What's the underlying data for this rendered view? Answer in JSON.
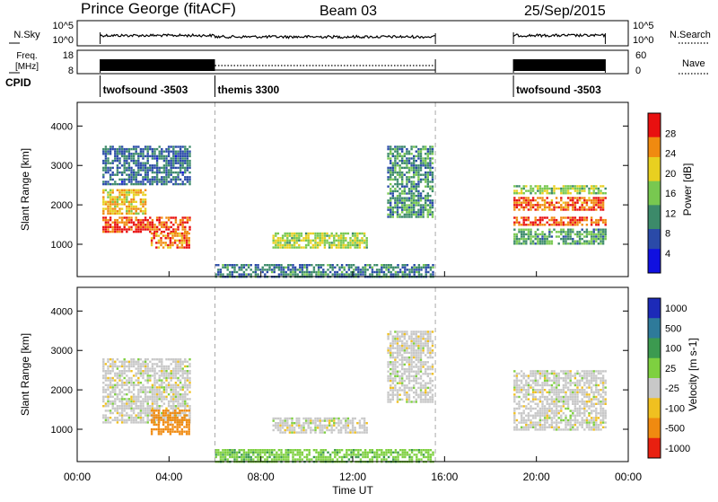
{
  "header": {
    "station": "Prince George (fitACF)",
    "beam": "Beam 03",
    "date": "25/Sep/2015"
  },
  "summary_panel": {
    "sky_label": "N.Sky",
    "sky_ticks": [
      "10^5",
      "10^0"
    ],
    "search_label": "N.Search",
    "search_ticks": [
      "10^5",
      "10^0"
    ],
    "freq_label_line1": "Freq.",
    "freq_label_line2": "[MHz]",
    "freq_ticks": [
      "18",
      "8"
    ],
    "nave_label": "Nave",
    "nave_ticks": [
      "60",
      "0"
    ],
    "cpid_label": "CPID",
    "cpid_segments": [
      {
        "label": "twofsound -3503",
        "start_hour": 1.0,
        "end_hour": 6.0
      },
      {
        "label": "themis 3300",
        "start_hour": 6.0,
        "end_hour": 15.6
      },
      {
        "label": "twofsound -3503",
        "start_hour": 19.0,
        "end_hour": 23.0
      }
    ],
    "operating_intervals": [
      [
        1.0,
        15.6
      ],
      [
        19.0,
        23.0
      ]
    ]
  },
  "chart_data": [
    {
      "type": "heatmap",
      "name": "power",
      "xlabel": "",
      "ylabel": "Slant Range [km]",
      "xlim": [
        0,
        24
      ],
      "ylim": [
        180,
        4600
      ],
      "y_ticks": [
        "1000",
        "2000",
        "3000",
        "4000"
      ],
      "colorbar_label": "Power [dB]",
      "colorbar_ticks": [
        "4",
        "8",
        "12",
        "16",
        "20",
        "24",
        "28"
      ],
      "colorbar_range": [
        0,
        32
      ],
      "colors": [
        "#1010e0",
        "#2a4aa8",
        "#3c8a6a",
        "#78c850",
        "#e8d020",
        "#f08a10",
        "#e81010"
      ],
      "regions": [
        {
          "t": [
            1.1,
            4.9
          ],
          "r": [
            1300,
            1700
          ],
          "level": 28
        },
        {
          "t": [
            1.1,
            3.0
          ],
          "r": [
            1750,
            2400
          ],
          "level": 22
        },
        {
          "t": [
            3.2,
            4.9
          ],
          "r": [
            900,
            1300
          ],
          "level": 26
        },
        {
          "t": [
            1.1,
            4.9
          ],
          "r": [
            2500,
            3500
          ],
          "level": 9
        },
        {
          "t": [
            8.5,
            12.6
          ],
          "r": [
            900,
            1300
          ],
          "level": 18
        },
        {
          "t": [
            13.5,
            15.5
          ],
          "r": [
            1700,
            3500
          ],
          "level": 12
        },
        {
          "t": [
            6.0,
            15.5
          ],
          "r": [
            200,
            500
          ],
          "level": 10
        },
        {
          "t": [
            19.0,
            23.0
          ],
          "r": [
            1500,
            1700
          ],
          "level": 28
        },
        {
          "t": [
            19.0,
            23.0
          ],
          "r": [
            1900,
            2200
          ],
          "level": 27
        },
        {
          "t": [
            19.0,
            23.0
          ],
          "r": [
            1000,
            1400
          ],
          "level": 13
        },
        {
          "t": [
            19.0,
            23.0
          ],
          "r": [
            2300,
            2500
          ],
          "level": 17
        }
      ]
    },
    {
      "type": "heatmap",
      "name": "velocity",
      "xlabel": "Time UT",
      "ylabel": "Slant Range [km]",
      "xlim": [
        0,
        24
      ],
      "ylim": [
        180,
        4600
      ],
      "y_ticks": [
        "1000",
        "2000",
        "3000",
        "4000"
      ],
      "x_ticks": [
        "00:00",
        "04:00",
        "08:00",
        "12:00",
        "16:00",
        "20:00",
        "00:00"
      ],
      "x_tick_hours": [
        0,
        4,
        8,
        12,
        16,
        20,
        24
      ],
      "colorbar_label": "Velocity [m s-1]",
      "colorbar_ticks": [
        "1000",
        "500",
        "100",
        "25",
        "-25",
        "-100",
        "-500",
        "-1000"
      ],
      "colors": [
        "#1c2ab8",
        "#2e7a9a",
        "#3c9a50",
        "#7ed040",
        "#c8c8c8",
        "#f0c020",
        "#f08a10",
        "#e82010"
      ],
      "regions": [
        {
          "t": [
            1.1,
            4.9
          ],
          "r": [
            1200,
            2800
          ],
          "level": 0
        },
        {
          "t": [
            3.2,
            4.9
          ],
          "r": [
            900,
            1500
          ],
          "level": -250
        },
        {
          "t": [
            8.5,
            12.6
          ],
          "r": [
            900,
            1300
          ],
          "level": 0
        },
        {
          "t": [
            13.5,
            15.5
          ],
          "r": [
            1700,
            3500
          ],
          "level": 0
        },
        {
          "t": [
            6.0,
            15.5
          ],
          "r": [
            200,
            500
          ],
          "level": 80
        },
        {
          "t": [
            19.0,
            23.0
          ],
          "r": [
            1000,
            2500
          ],
          "level": 0
        }
      ]
    }
  ],
  "boundary_markers_hours": [
    6.0,
    15.6
  ]
}
